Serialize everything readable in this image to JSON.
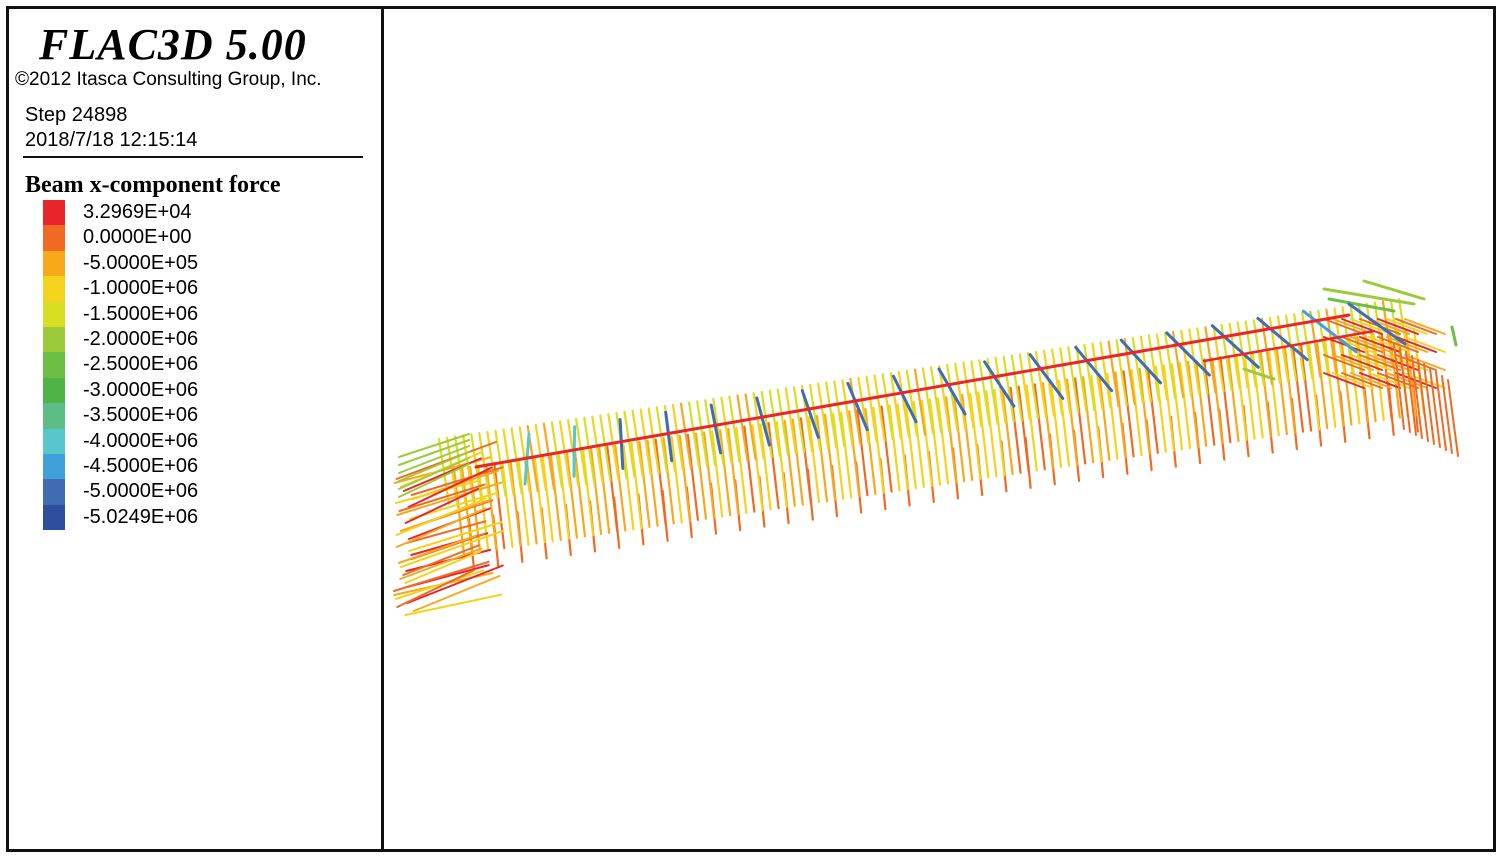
{
  "header": {
    "app_title": "FLAC3D 5.00",
    "copyright": "©2012 Itasca Consulting Group, Inc.",
    "step": "Step 24898",
    "datetime": "2018/7/18 12:15:14"
  },
  "legend": {
    "title": "Beam x-component force",
    "items": [
      {
        "label": "3.2969E+04",
        "color": "#e8262a"
      },
      {
        "label": "0.0000E+00",
        "color": "#f06a23"
      },
      {
        "label": "-5.0000E+05",
        "color": "#f7a81b"
      },
      {
        "label": "-1.0000E+06",
        "color": "#f4d31c"
      },
      {
        "label": "-1.5000E+06",
        "color": "#d8df22"
      },
      {
        "label": "-2.0000E+06",
        "color": "#9bcb3a"
      },
      {
        "label": "-2.5000E+06",
        "color": "#6bbf45"
      },
      {
        "label": "-3.0000E+06",
        "color": "#4fb348"
      },
      {
        "label": "-3.5000E+06",
        "color": "#5ebd86"
      },
      {
        "label": "-4.0000E+06",
        "color": "#59c5cd"
      },
      {
        "label": "-4.5000E+06",
        "color": "#3fa0dc"
      },
      {
        "label": "-5.0000E+06",
        "color": "#3f6cb3"
      },
      {
        "label": "-5.0249E+06",
        "color": "#2d4f9f"
      }
    ]
  }
}
